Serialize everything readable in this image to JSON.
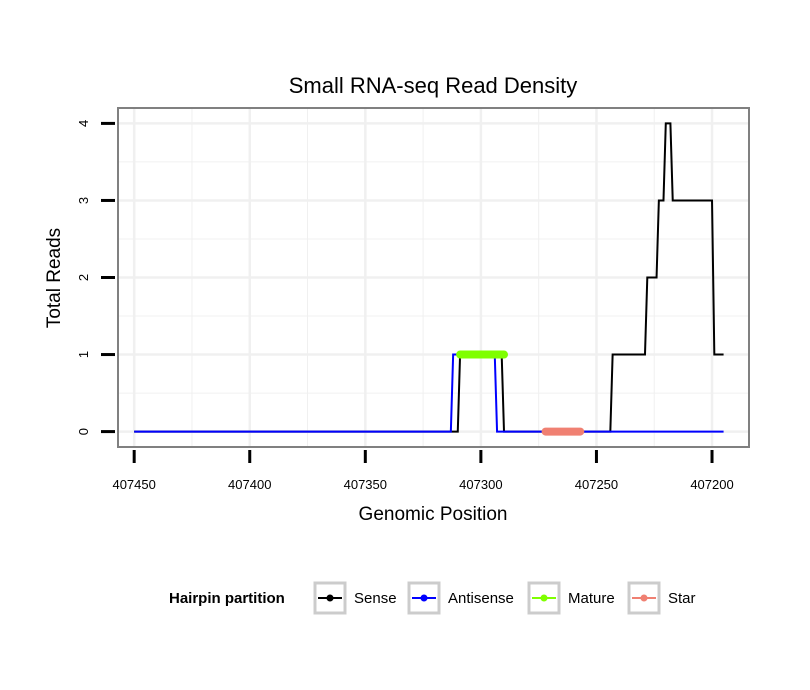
{
  "chart_data": {
    "type": "line",
    "title": "Small RNA-seq Read Density",
    "xlabel": "Genomic Position",
    "ylabel": "Total Reads",
    "xlim": [
      407457,
      407184
    ],
    "ylim": [
      -0.2,
      4.2
    ],
    "x_reversed": true,
    "x_ticks": [
      407450,
      407400,
      407350,
      407300,
      407250,
      407200
    ],
    "x_tick_labels": [
      "407450",
      "407400",
      "407350",
      "407300",
      "407250",
      "407200"
    ],
    "y_ticks": [
      0,
      1,
      2,
      3,
      4
    ],
    "y_tick_labels": [
      "0",
      "1",
      "2",
      "3",
      "4"
    ],
    "grid": true,
    "legend": {
      "title": "Hairpin partition",
      "position": "bottom",
      "entries": [
        "Sense",
        "Antisense",
        "Mature",
        "Star"
      ]
    },
    "series": [
      {
        "name": "Sense",
        "color": "#000000",
        "kind": "step",
        "x": [
          407450,
          407310,
          407309,
          407291,
          407290,
          407244,
          407243,
          407229,
          407228,
          407224,
          407223,
          407221,
          407220,
          407218,
          407217,
          407200,
          407199,
          407195
        ],
        "y": [
          0,
          0,
          1,
          1,
          0,
          0,
          1,
          1,
          2,
          2,
          3,
          3,
          4,
          4,
          3,
          3,
          1,
          1
        ]
      },
      {
        "name": "Antisense",
        "color": "#0000ff",
        "kind": "step",
        "x": [
          407450,
          407313,
          407312,
          407294,
          407293,
          407195
        ],
        "y": [
          0,
          0,
          1,
          1,
          0,
          0
        ]
      },
      {
        "name": "Mature",
        "color": "#7fff00",
        "kind": "segment",
        "x": [
          407309,
          407290
        ],
        "y": [
          1,
          1
        ]
      },
      {
        "name": "Star",
        "color": "#f08072",
        "kind": "segment",
        "x": [
          407272,
          407257
        ],
        "y": [
          0,
          0
        ]
      }
    ]
  }
}
